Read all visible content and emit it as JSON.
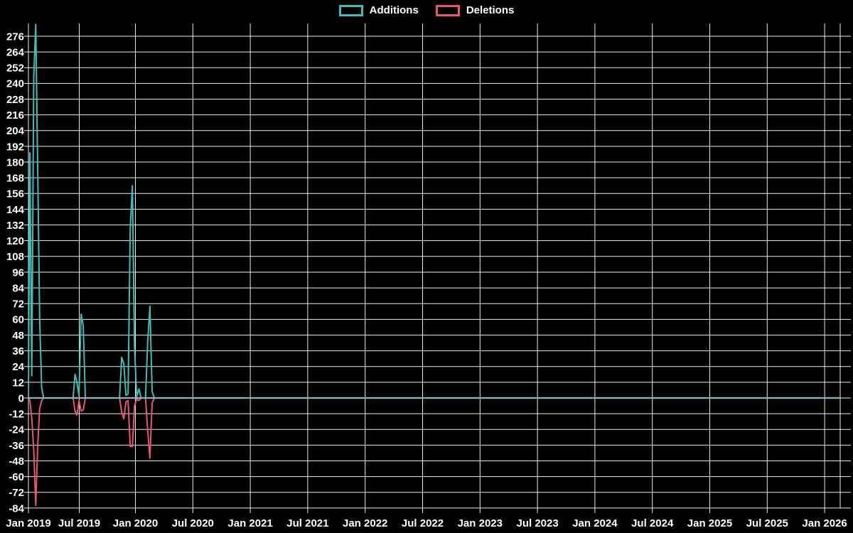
{
  "legend": {
    "additions_label": "Additions",
    "deletions_label": "Deletions"
  },
  "colors": {
    "background": "#000000",
    "text": "#ffffff",
    "grid": "#ffffff",
    "additions": "#3fbcb6",
    "deletions": "#e85672",
    "zero_line": "#8fb3c3"
  },
  "chart_data": {
    "type": "line",
    "title": "",
    "xlabel": "",
    "ylabel": "",
    "grid": true,
    "legend_position": "top-center",
    "x_axis": {
      "start": "Jan 2019",
      "end": "Jan 2026",
      "tick_labels": [
        "Jan 2019",
        "Jul 2019",
        "Jan 2020",
        "Jul 2020",
        "Jan 2021",
        "Jul 2021",
        "Jan 2022",
        "Jul 2022",
        "Jan 2023",
        "Jul 2023",
        "Jan 2024",
        "Jul 2024",
        "Jan 2025",
        "Jul 2025",
        "Jan 2026"
      ]
    },
    "y_axis": {
      "min": -84,
      "max": 276,
      "step": 12,
      "tick_labels": [
        276,
        264,
        252,
        240,
        228,
        216,
        204,
        192,
        180,
        168,
        156,
        144,
        132,
        120,
        108,
        96,
        84,
        72,
        60,
        48,
        36,
        24,
        12,
        0,
        -12,
        -24,
        -36,
        -48,
        -60,
        -72,
        -84
      ]
    },
    "series_names": [
      "Additions",
      "Deletions"
    ],
    "weeks": [
      [
        "2019-01-01",
        0,
        0
      ],
      [
        "2019-01-06",
        187,
        -2
      ],
      [
        "2019-01-13",
        17,
        -15
      ],
      [
        "2019-01-20",
        245,
        -40
      ],
      [
        "2019-01-27",
        285,
        -82
      ],
      [
        "2019-02-03",
        177,
        -37
      ],
      [
        "2019-02-10",
        60,
        -8
      ],
      [
        "2019-02-17",
        8,
        -2
      ],
      [
        "2019-02-24",
        0,
        0
      ],
      [
        "2019-06-09",
        0,
        0
      ],
      [
        "2019-06-16",
        18,
        -10
      ],
      [
        "2019-06-23",
        12,
        -13
      ],
      [
        "2019-06-30",
        2,
        -2
      ],
      [
        "2019-07-07",
        64,
        -10
      ],
      [
        "2019-07-14",
        55,
        -9
      ],
      [
        "2019-07-21",
        0,
        0
      ],
      [
        "2019-11-10",
        0,
        0
      ],
      [
        "2019-11-17",
        31,
        -11
      ],
      [
        "2019-11-24",
        26,
        -16
      ],
      [
        "2019-12-01",
        2,
        -3
      ],
      [
        "2019-12-08",
        3,
        -2
      ],
      [
        "2019-12-15",
        129,
        -37
      ],
      [
        "2019-12-22",
        162,
        -37
      ],
      [
        "2019-12-29",
        40,
        -6
      ],
      [
        "2020-01-05",
        1,
        -1
      ],
      [
        "2020-01-12",
        7,
        -2
      ],
      [
        "2020-01-19",
        0,
        0
      ],
      [
        "2020-02-02",
        0,
        0
      ],
      [
        "2020-02-09",
        43,
        -25
      ],
      [
        "2020-02-16",
        70,
        -46
      ],
      [
        "2020-02-23",
        5,
        -4
      ],
      [
        "2020-03-01",
        0,
        0
      ],
      [
        "2026-02-15",
        0,
        0
      ]
    ]
  }
}
